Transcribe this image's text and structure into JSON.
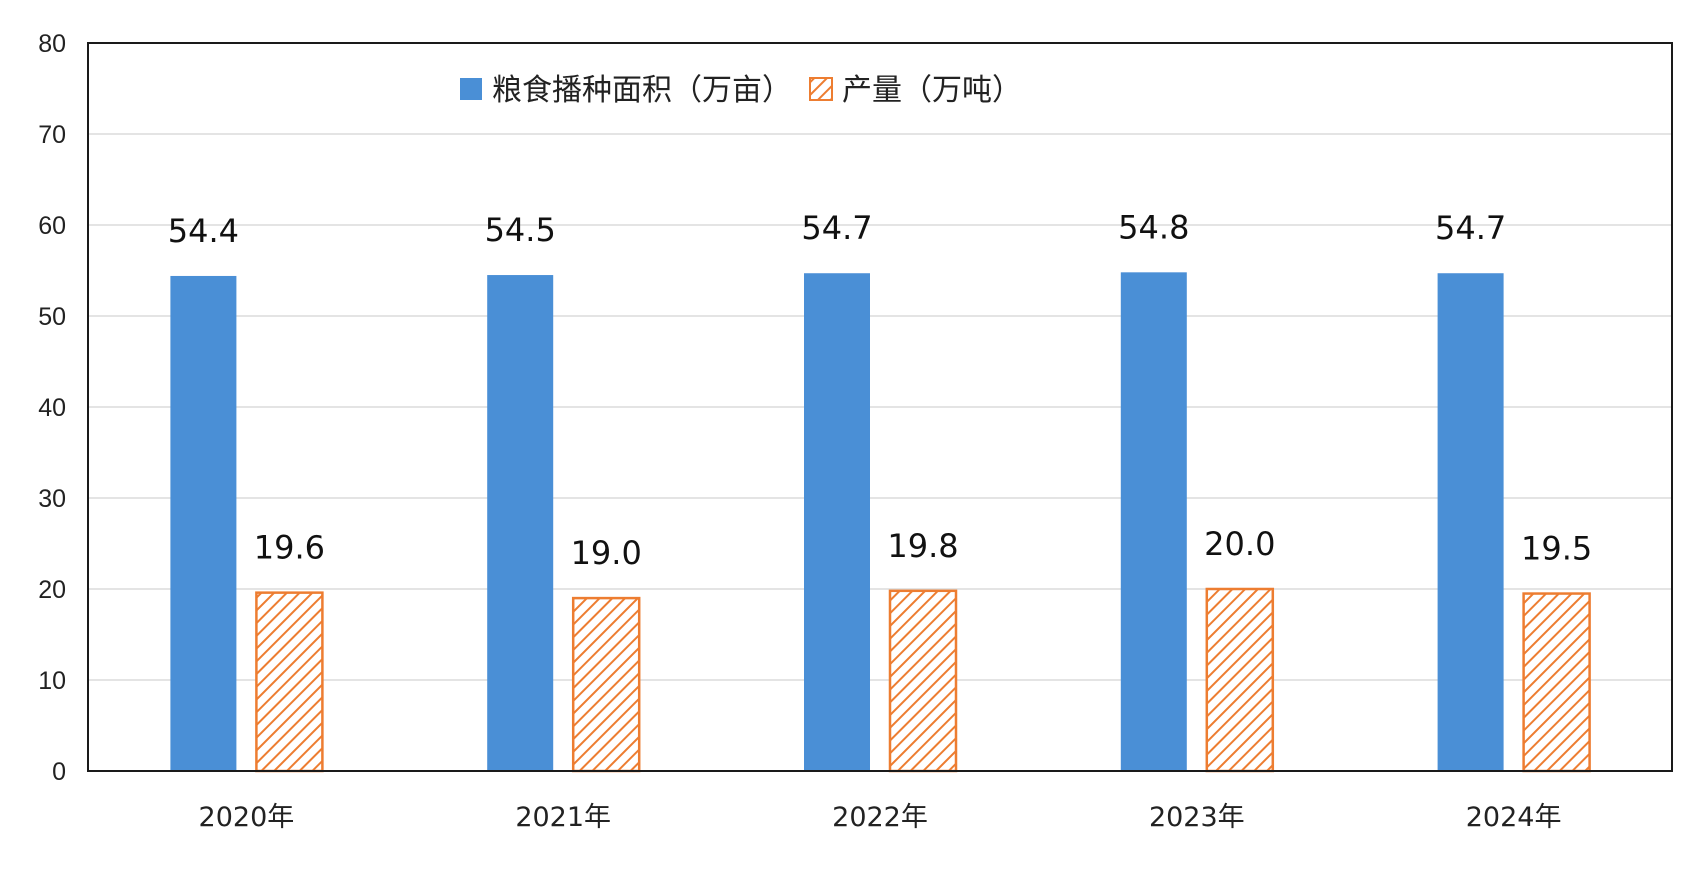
{
  "chart_data": {
    "type": "bar",
    "categories": [
      "2020年",
      "2021年",
      "2022年",
      "2023年",
      "2024年"
    ],
    "series": [
      {
        "name": "粮食播种面积（万亩）",
        "values": [
          54.4,
          54.5,
          54.7,
          54.8,
          54.7
        ],
        "color": "#4a8fd6",
        "pattern": "solid"
      },
      {
        "name": "产量（万吨）",
        "values": [
          19.6,
          19.0,
          19.8,
          20.0,
          19.5
        ],
        "color": "#ed7d31",
        "pattern": "diagonal-hatch"
      }
    ],
    "data_labels": [
      [
        "54.4",
        "54.5",
        "54.7",
        "54.8",
        "54.7"
      ],
      [
        "19.6",
        "19.0",
        "19.8",
        "20.0",
        "19.5"
      ]
    ],
    "ylim": [
      0,
      80
    ],
    "yticks": [
      0,
      10,
      20,
      30,
      40,
      50,
      60,
      70,
      80
    ],
    "grid": true,
    "legend": "top-center",
    "title": "",
    "xlabel": "",
    "ylabel": ""
  }
}
